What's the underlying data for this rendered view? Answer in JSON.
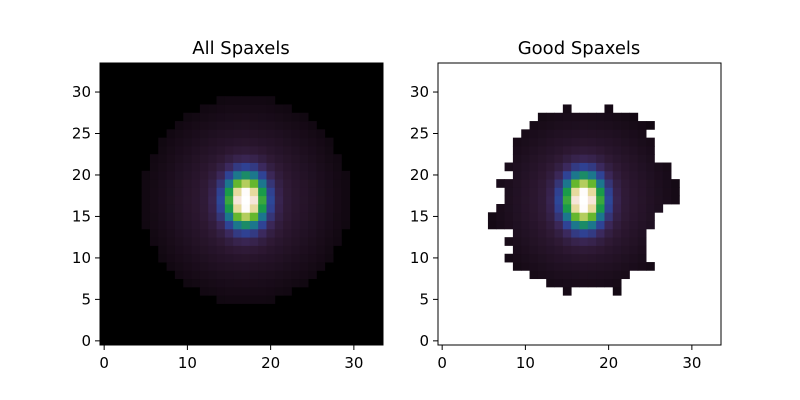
{
  "chart_data": [
    {
      "type": "heatmap",
      "title": "All Spaxels",
      "grid_size": 34,
      "xlim": [
        -0.5,
        33.5
      ],
      "ylim": [
        -0.5,
        33.5
      ],
      "xticks": [
        0,
        10,
        20,
        30
      ],
      "yticks": [
        0,
        5,
        10,
        15,
        20,
        25,
        30
      ],
      "colormap": "cubehelix",
      "peak": {
        "x": 17,
        "y": 17
      },
      "masked": false,
      "background_color": "#000000"
    },
    {
      "type": "heatmap",
      "title": "Good Spaxels",
      "grid_size": 34,
      "xlim": [
        -0.5,
        33.5
      ],
      "ylim": [
        -0.5,
        33.5
      ],
      "xticks": [
        0,
        10,
        20,
        30
      ],
      "yticks": [
        0,
        5,
        10,
        15,
        20,
        25,
        30
      ],
      "colormap": "cubehelix",
      "peak": {
        "x": 17,
        "y": 17
      },
      "masked": true,
      "background_color": "#ffffff",
      "mask_rows": [
        {
          "y": 6,
          "x_min": 15,
          "x_max": 15
        },
        {
          "y": 6,
          "x_min": 21,
          "x_max": 21
        },
        {
          "y": 7,
          "x_min": 13,
          "x_max": 21
        },
        {
          "y": 8,
          "x_min": 11,
          "x_max": 22
        },
        {
          "y": 9,
          "x_min": 9,
          "x_max": 25
        },
        {
          "y": 10,
          "x_min": 8,
          "x_max": 24
        },
        {
          "y": 11,
          "x_min": 9,
          "x_max": 24
        },
        {
          "y": 12,
          "x_min": 8,
          "x_max": 24
        },
        {
          "y": 13,
          "x_min": 9,
          "x_max": 24
        },
        {
          "y": 14,
          "x_min": 6,
          "x_max": 25
        },
        {
          "y": 15,
          "x_min": 6,
          "x_max": 25
        },
        {
          "y": 16,
          "x_min": 7,
          "x_max": 26
        },
        {
          "y": 17,
          "x_min": 8,
          "x_max": 28
        },
        {
          "y": 18,
          "x_min": 8,
          "x_max": 28
        },
        {
          "y": 19,
          "x_min": 7,
          "x_max": 28
        },
        {
          "y": 20,
          "x_min": 9,
          "x_max": 27
        },
        {
          "y": 21,
          "x_min": 8,
          "x_max": 27
        },
        {
          "y": 22,
          "x_min": 9,
          "x_max": 25
        },
        {
          "y": 23,
          "x_min": 9,
          "x_max": 25
        },
        {
          "y": 24,
          "x_min": 9,
          "x_max": 25
        },
        {
          "y": 25,
          "x_min": 10,
          "x_max": 24
        },
        {
          "y": 26,
          "x_min": 11,
          "x_max": 25
        },
        {
          "y": 27,
          "x_min": 12,
          "x_max": 23
        },
        {
          "y": 28,
          "x_min": 15,
          "x_max": 15
        },
        {
          "y": 28,
          "x_min": 20,
          "x_max": 20
        }
      ]
    }
  ]
}
